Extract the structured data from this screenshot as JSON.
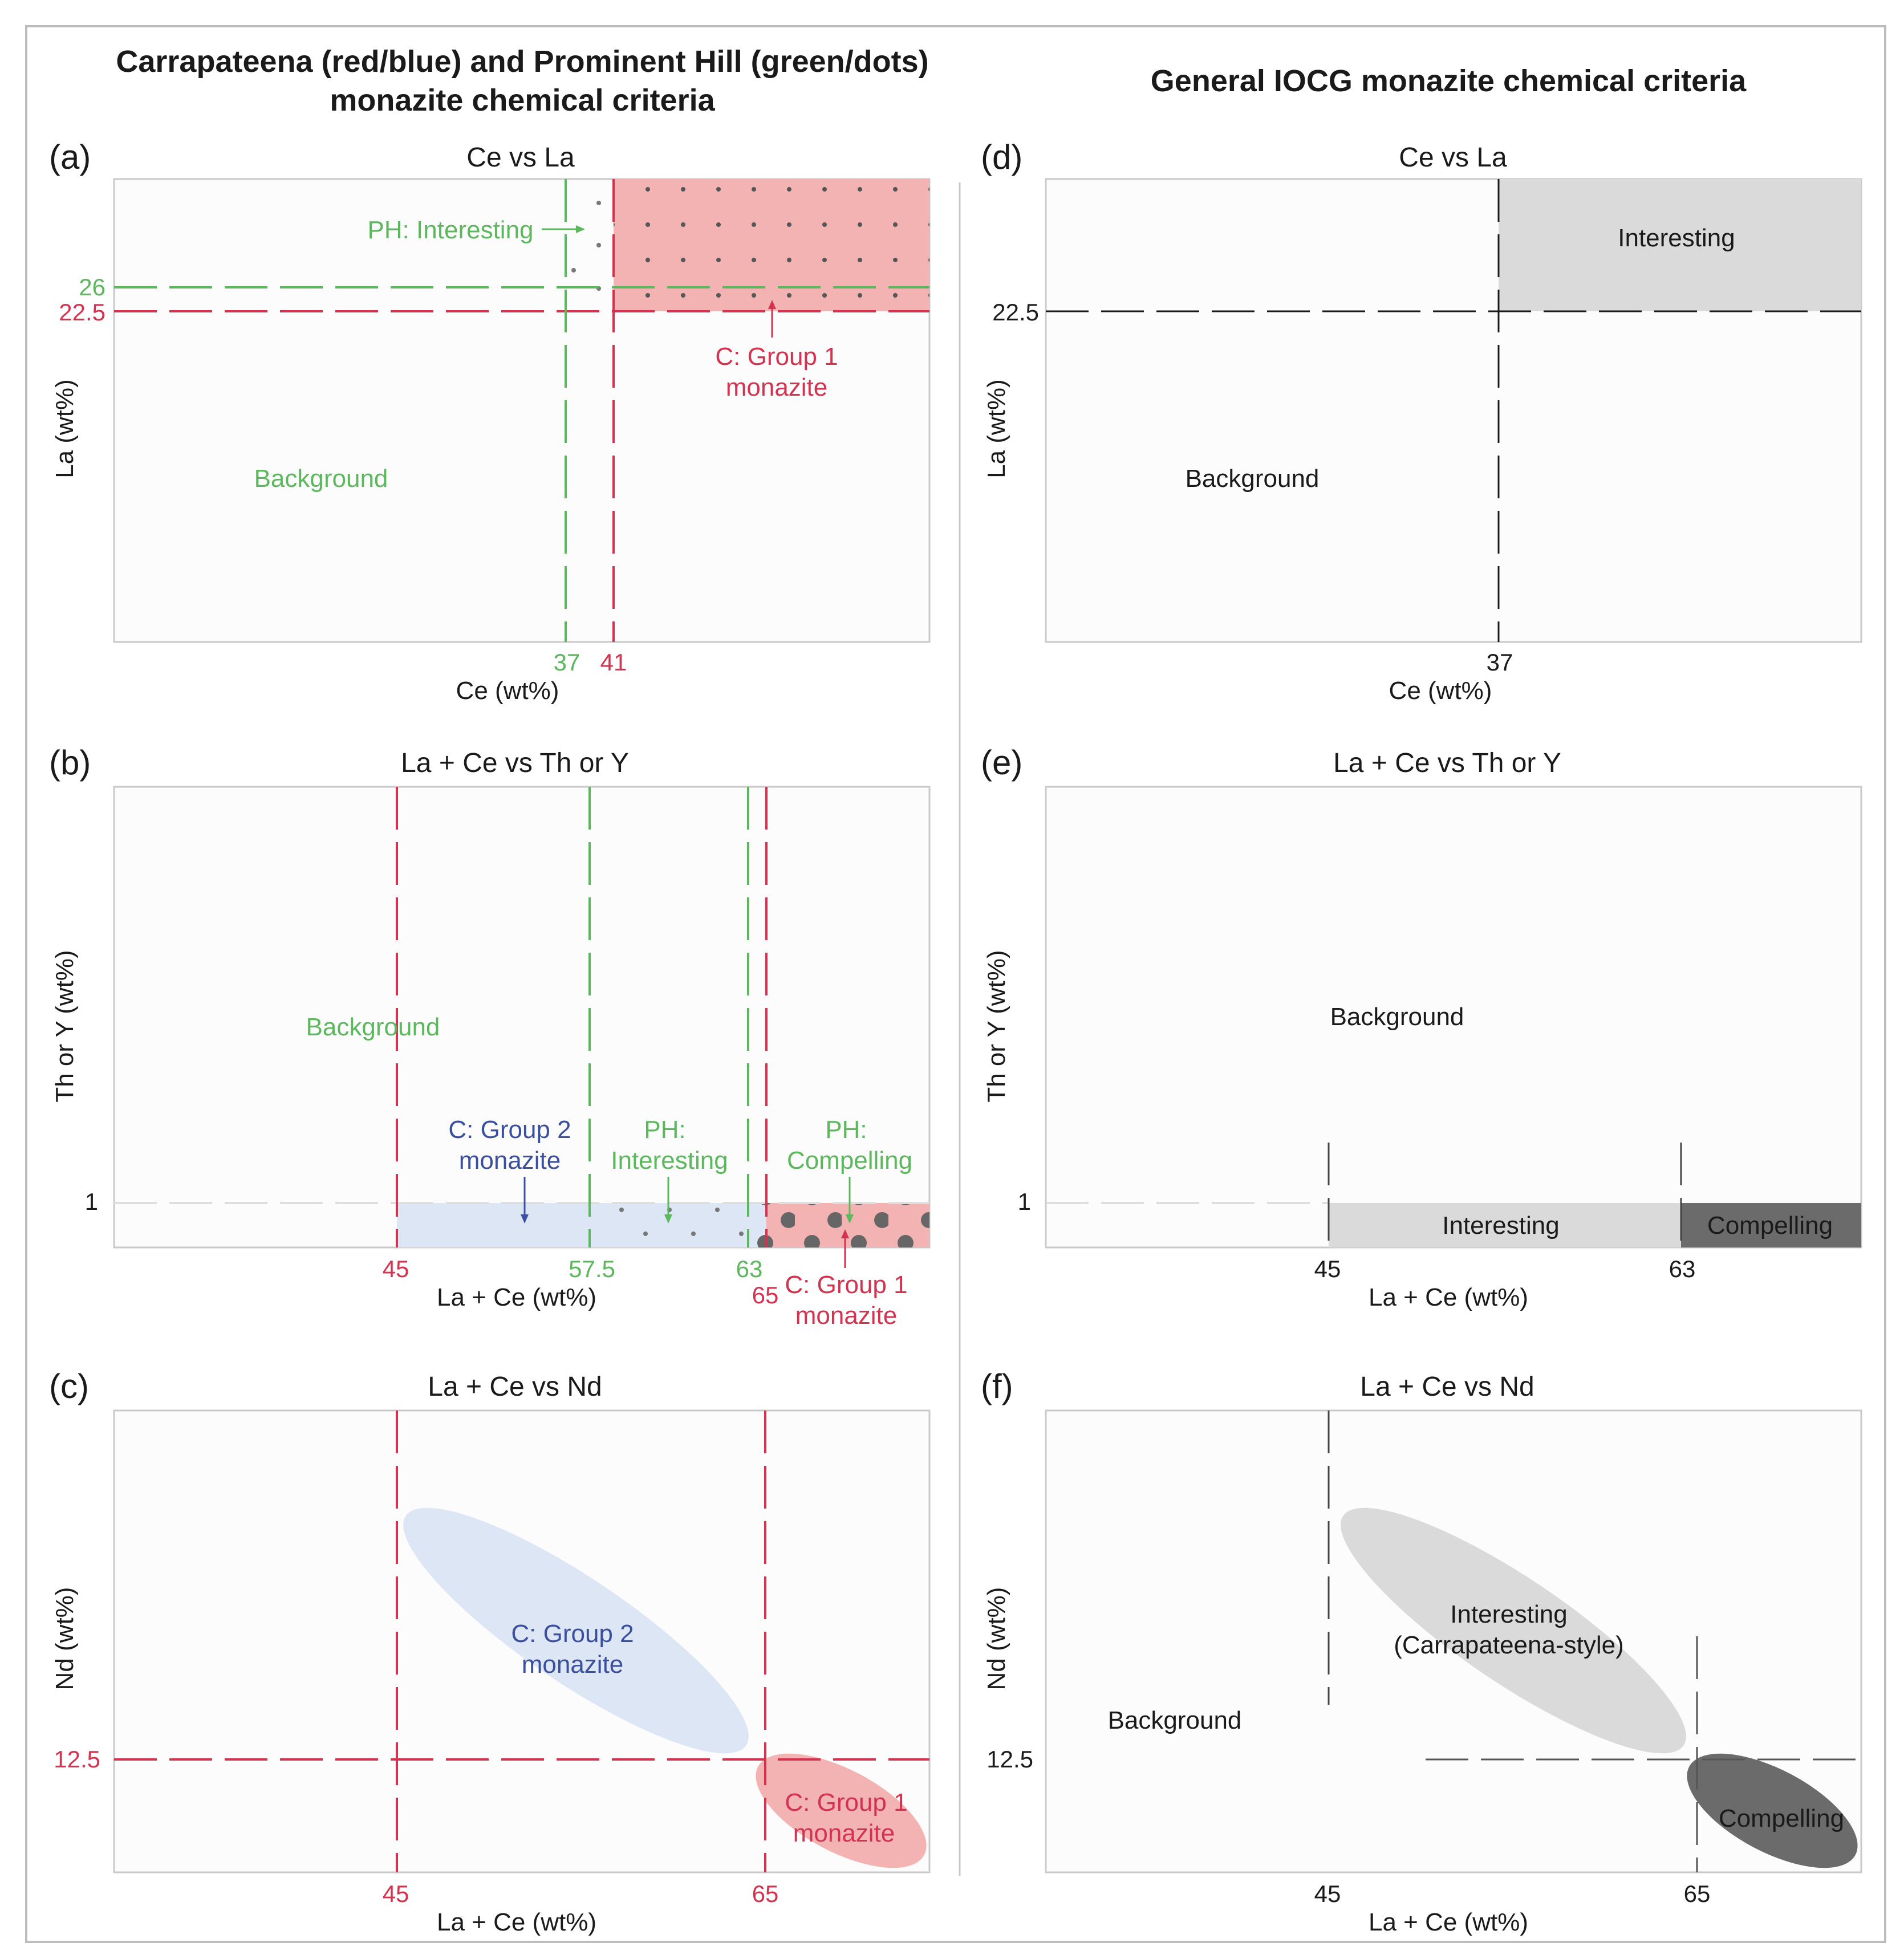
{
  "headers": {
    "left_line1": "Carrapateena (red/blue) and Prominent Hill (green/dots)",
    "left_line2": "monazite chemical criteria",
    "right": "General IOCG monazite chemical criteria"
  },
  "panels": {
    "a": {
      "label": "(a)",
      "title": "Ce vs La",
      "xlabel": "Ce (wt%)",
      "ylabel": "La (wt%)",
      "ticks": {
        "x37": "37",
        "x41": "41",
        "y26": "26",
        "y22": "22.5"
      },
      "regions": {
        "ph_interesting": "PH: Interesting",
        "c_group1_l1": "C: Group 1",
        "c_group1_l2": "monazite",
        "background": "Background"
      }
    },
    "b": {
      "label": "(b)",
      "title": "La + Ce vs Th or Y",
      "xlabel": "La + Ce (wt%)",
      "ylabel": "Th or Y (wt%)",
      "ticks": {
        "y1": "1",
        "x45": "45",
        "x575": "57.5",
        "x63": "63",
        "x65": "65"
      },
      "regions": {
        "background": "Background",
        "c_group2_l1": "C: Group 2",
        "c_group2_l2": "monazite",
        "ph_interesting_l1": "PH:",
        "ph_interesting_l2": "Interesting",
        "ph_compelling_l1": "PH:",
        "ph_compelling_l2": "Compelling",
        "c_group1_l1": "C: Group 1",
        "c_group1_l2": "monazite"
      }
    },
    "c": {
      "label": "(c)",
      "title": "La + Ce vs Nd",
      "xlabel": "La + Ce (wt%)",
      "ylabel": "Nd (wt%)",
      "ticks": {
        "y125": "12.5",
        "x45": "45",
        "x65": "65"
      },
      "regions": {
        "c_group2_l1": "C: Group 2",
        "c_group2_l2": "monazite",
        "c_group1_l1": "C: Group 1",
        "c_group1_l2": "monazite"
      }
    },
    "d": {
      "label": "(d)",
      "title": "Ce vs La",
      "xlabel": "Ce (wt%)",
      "ylabel": "La (wt%)",
      "ticks": {
        "y225": "22.5",
        "x37": "37"
      },
      "regions": {
        "interesting": "Interesting",
        "background": "Background"
      }
    },
    "e": {
      "label": "(e)",
      "title": "La + Ce vs Th or Y",
      "xlabel": "La + Ce (wt%)",
      "ylabel": "Th or Y (wt%)",
      "ticks": {
        "y1": "1",
        "x45": "45",
        "x63": "63"
      },
      "regions": {
        "background": "Background",
        "interesting": "Interesting",
        "compelling": "Compelling"
      }
    },
    "f": {
      "label": "(f)",
      "title": "La + Ce vs Nd",
      "xlabel": "La + Ce (wt%)",
      "ylabel": "Nd (wt%)",
      "ticks": {
        "y125": "12.5",
        "x45": "45",
        "x65": "65"
      },
      "regions": {
        "interesting_l1": "Interesting",
        "interesting_l2": "(Carrapateena-style)",
        "background": "Background",
        "compelling": "Compelling"
      }
    }
  },
  "colors": {
    "carrapateena_red": "#d4324e",
    "carrapateena_red_fill": "#f4b3b3",
    "carrapateena_blue": "#3a4f9e",
    "carrapateena_blue_fill": "#dde6f5",
    "prominent_hill_green": "#5cb85c",
    "interesting_grey": "#d9dad9",
    "compelling_grey": "#6b6b6b"
  }
}
